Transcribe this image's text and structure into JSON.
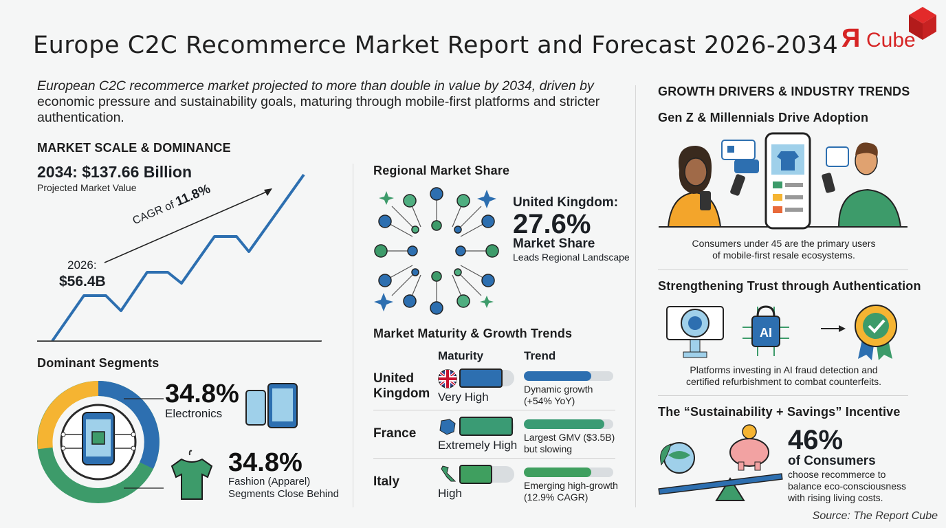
{
  "header": {
    "title": "Europe C2C Recommerce Market Report and Forecast 2026-2034",
    "logo_text_r": "Я",
    "logo_text": "Cube"
  },
  "intro": {
    "line1": "European C2C recommerce market projected to more than double in value by 2034, driven by",
    "line2": "economic pressure and sustainability goals, maturing through mobile-first platforms and stricter",
    "line3": "authentication."
  },
  "market_scale": {
    "heading": "MARKET SCALE & DOMINANCE",
    "value_2034": "2034: $137.66 Billion",
    "value_label": "Projected Market Value",
    "cagr_prefix": "CAGR of",
    "cagr_value": "11.8%",
    "start_year": "2026:",
    "start_value": "$56.4B"
  },
  "segments": {
    "heading": "Dominant Segments",
    "electronics_pct": "34.8%",
    "electronics_label": "Electronics",
    "fashion_pct": "34.8%",
    "fashion_label1": "Fashion (Apparel)",
    "fashion_label2": "Segments Close Behind",
    "colors": {
      "blue": "#2d6fb0",
      "green": "#3d9b6a",
      "yellow": "#f5b432"
    }
  },
  "regional": {
    "heading": "Regional Market Share",
    "country": "United Kingdom:",
    "share": "27.6%",
    "share_label": "Market Share",
    "sub": "Leads Regional Landscape"
  },
  "maturity": {
    "heading": "Market Maturity & Growth Trends",
    "col_maturity": "Maturity",
    "col_trend": "Trend",
    "rows": [
      {
        "country1": "United",
        "country2": "Kingdom",
        "maturity": "Very High",
        "maturity_level": 0.8,
        "trend1": "Dynamic growth",
        "trend2": "(+54% YoY)",
        "trend_level": 0.75,
        "color": "#2d6fb0"
      },
      {
        "country1": "France",
        "country2": "",
        "maturity": "Extremely High",
        "maturity_level": 1.0,
        "trend1": "Largest GMV ($3.5B)",
        "trend2": "but slowing",
        "trend_level": 0.9,
        "color": "#3a9b74"
      },
      {
        "country1": "Italy",
        "country2": "",
        "maturity": "High",
        "maturity_level": 0.6,
        "trend1": "Emerging high-growth",
        "trend2": "(12.9% CAGR)",
        "trend_level": 0.75,
        "color": "#3f9f5f"
      }
    ]
  },
  "drivers": {
    "heading": "GROWTH DRIVERS & INDUSTRY TRENDS",
    "genz_heading": "Gen Z & Millennials Drive Adoption",
    "genz_text1": "Consumers under 45 are the primary users",
    "genz_text2": "of mobile-first resale ecosystems.",
    "trust_heading": "Strengthening Trust through Authentication",
    "ai_label": "AI",
    "trust_text1": "Platforms investing in AI fraud detection and",
    "trust_text2": "certified refurbishment to combat counterfeits.",
    "sustain_heading": "The “Sustainability + Savings” Incentive",
    "sustain_pct": "46%",
    "sustain_label": "of Consumers",
    "sustain_text1": "choose recommerce to",
    "sustain_text2": "balance eco-consciousness",
    "sustain_text3": "with rising living costs."
  },
  "source": "Source: The Report Cube"
}
